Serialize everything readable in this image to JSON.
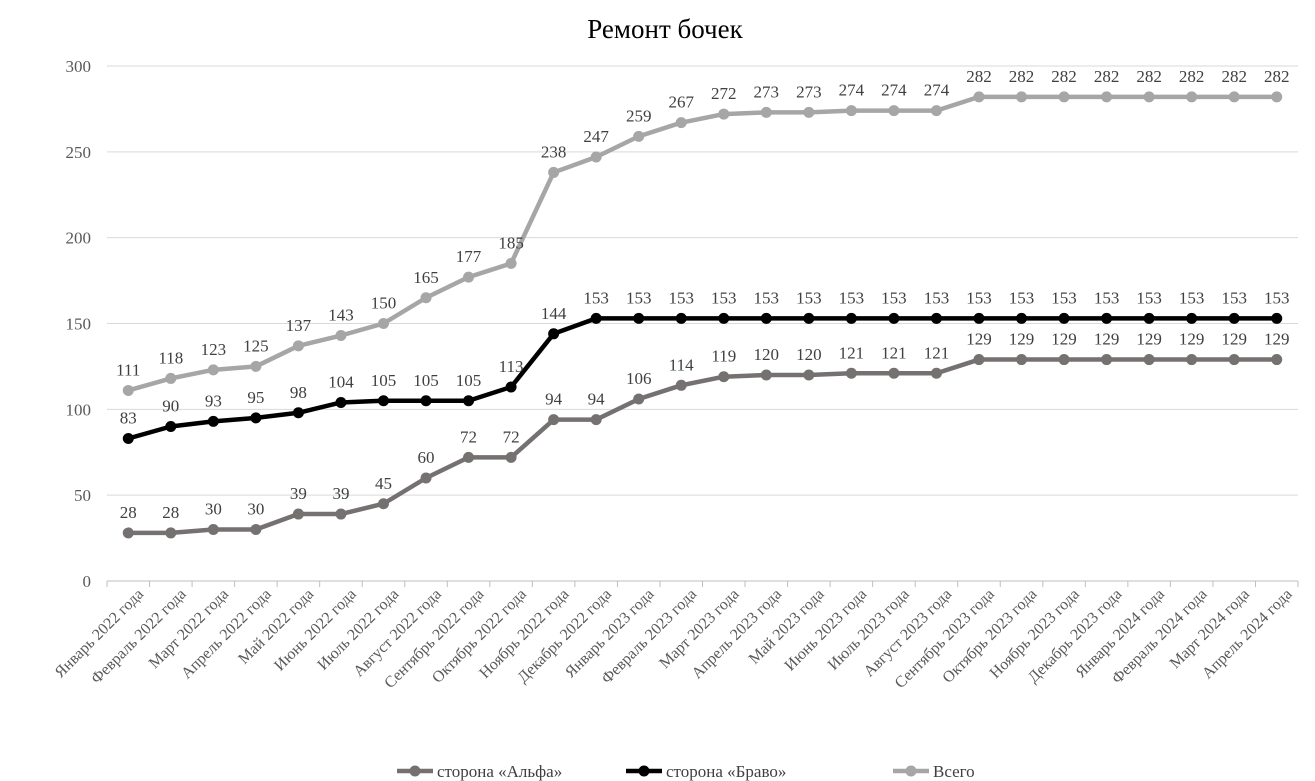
{
  "chart_data": {
    "type": "line",
    "title": "Ремонт бочек",
    "xlabel": "",
    "ylabel": "",
    "ylim": [
      0,
      300
    ],
    "yticks": [
      0,
      50,
      100,
      150,
      200,
      250,
      300
    ],
    "grid": "horizontal",
    "legend_position": "bottom",
    "categories": [
      "Январь 2022 года",
      "Февраль 2022 года",
      "Март 2022 года",
      "Апрель 2022 года",
      "Май 2022 года",
      "Июнь 2022 года",
      "Июль 2022 года",
      "Август 2022 года",
      "Сентябрь 2022 года",
      "Октябрь 2022 года",
      "Ноябрь 2022 года",
      "Декабрь 2022 года",
      "Январь 2023 года",
      "Февраль 2023 года",
      "Март 2023 года",
      "Апрель 2023 года",
      "Май 2023 года",
      "Июнь 2023 года",
      "Июль 2023 года",
      "Август 2023 года",
      "Сентябрь 2023 года",
      "Октябрь 2023 года",
      "Ноябрь 2023 года",
      "Декабрь 2023 года",
      "Январь 2024 года",
      "Февраль 2024 года",
      "Март 2024 года",
      "Апрель 2024 года"
    ],
    "series": [
      {
        "name": "сторона «Альфа»",
        "color": "#767171",
        "values": [
          28,
          28,
          30,
          30,
          39,
          39,
          45,
          60,
          72,
          72,
          94,
          94,
          106,
          114,
          119,
          120,
          120,
          121,
          121,
          121,
          129,
          129,
          129,
          129,
          129,
          129,
          129,
          129
        ]
      },
      {
        "name": "сторона «Браво»",
        "color": "#000000",
        "values": [
          83,
          90,
          93,
          95,
          98,
          104,
          105,
          105,
          105,
          113,
          144,
          153,
          153,
          153,
          153,
          153,
          153,
          153,
          153,
          153,
          153,
          153,
          153,
          153,
          153,
          153,
          153,
          153
        ]
      },
      {
        "name": "Всего",
        "color": "#a6a6a6",
        "values": [
          111,
          118,
          123,
          125,
          137,
          143,
          150,
          165,
          177,
          185,
          238,
          247,
          259,
          267,
          272,
          273,
          273,
          274,
          274,
          274,
          282,
          282,
          282,
          282,
          282,
          282,
          282,
          282
        ]
      }
    ]
  }
}
